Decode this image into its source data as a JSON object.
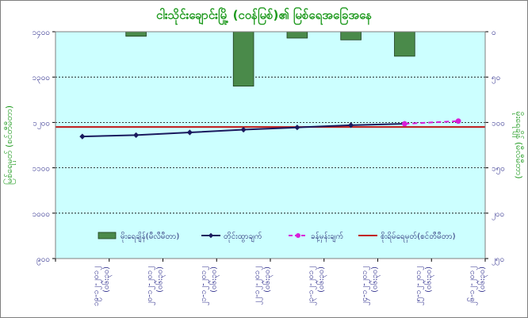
{
  "chart_data": {
    "type": "bar+line",
    "title": "ငါးသိုင်းချောင်းမြို့ (ငဝန်မြစ်)၏ မြစ်ရေအခြေအနေ",
    "categories": [
      "၁၉-၁၂-၂၀၁၂ (၀၆း၃၀)",
      "၂၀-၁၂-၂၀၁၂ (၀၆း၃၀)",
      "၂၁-၁၂-၂၀၁၂ (၀၆း၃၀)",
      "၂၂-၁၂-၂၀၁၂ (၀၆း၃၀)",
      "၂၃-၁၂-၂၀၁၂ (၀၆း၃၀)",
      "၂၄-၁၂-၂၀၁၂ (၀၆း၃၀)",
      "၂၅-၁၂-၂၀၁၂ (၀၆း၃၀)",
      "၂၆-၁၂-၂၀၁၂ (၀၆း၃၀)"
    ],
    "y_left": {
      "label": "မြစ်ရေမှတ် (စင်တီမီတာ)",
      "min": 900,
      "max": 1400,
      "ticks": [
        "၉၀၀",
        "၁၀၀၀",
        "၁၁၀၀",
        "၁၂၀၀",
        "၁၃၀၀",
        "၁၄၀၀"
      ],
      "tick_values": [
        900,
        1000,
        1100,
        1200,
        1300,
        1400
      ]
    },
    "y_right": {
      "label": "မိုးရေချိန် (မီလီမီတာ)",
      "min": 0,
      "max": 250,
      "reversed": true,
      "ticks": [
        "၀",
        "၅၀",
        "၁၀၀",
        "၁၅၀",
        "၂၀၀",
        "၂၅၀"
      ],
      "tick_values": [
        0,
        50,
        100,
        150,
        200,
        250
      ]
    },
    "series": [
      {
        "name": "မိုးရေချိန်(မီလီမီတာ)",
        "type": "bar",
        "axis": "right",
        "color": "#4a8a4a",
        "values": [
          0,
          5,
          0,
          60,
          7,
          9,
          27,
          0
        ]
      },
      {
        "name": "တိုင်းထွာချက်",
        "type": "line",
        "axis": "left",
        "color": "#1a1a5e",
        "marker": "diamond",
        "values": [
          1169,
          1172,
          1178,
          1184,
          1189,
          1194,
          1197,
          null
        ]
      },
      {
        "name": "ခန့်မှန်းချက်",
        "type": "line",
        "axis": "left",
        "color": "#d81ed8",
        "dashed": true,
        "marker": "circle",
        "values": [
          null,
          null,
          null,
          null,
          null,
          null,
          1197,
          1203
        ]
      },
      {
        "name": "စိုးရိမ်ရေမှတ်(စင်တီမီတာ)",
        "type": "hline",
        "axis": "left",
        "color": "#c01818",
        "value": 1190
      }
    ],
    "grid": true,
    "legend_position": "bottom"
  }
}
